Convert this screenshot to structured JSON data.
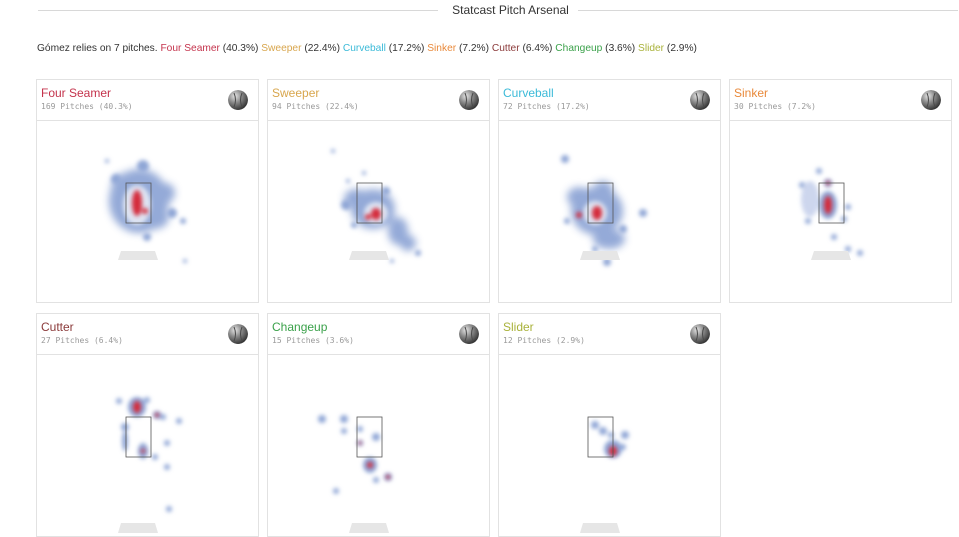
{
  "header": {
    "title": "Statcast Pitch Arsenal"
  },
  "summary": {
    "intro": "Gómez relies on 7 pitches.",
    "items": [
      {
        "name": "Four Seamer",
        "pct": "(40.3%)",
        "color": "#c4334c"
      },
      {
        "name": "Sweeper",
        "pct": "(22.4%)",
        "color": "#d8a64d"
      },
      {
        "name": "Curveball",
        "pct": "(17.2%)",
        "color": "#3bbad8"
      },
      {
        "name": "Sinker",
        "pct": "(7.2%)",
        "color": "#e9893a"
      },
      {
        "name": "Cutter",
        "pct": "(6.4%)",
        "color": "#8b3a3a"
      },
      {
        "name": "Changeup",
        "pct": "(3.6%)",
        "color": "#3aa14a"
      },
      {
        "name": "Slider",
        "pct": "(2.9%)",
        "color": "#a9b23a"
      }
    ]
  },
  "cards": [
    {
      "name": "Four Seamer",
      "count": "169 Pitches (40.3%)",
      "color": "#c4334c",
      "ball_icon": "baseball-grip-icon"
    },
    {
      "name": "Sweeper",
      "count": "94 Pitches (22.4%)",
      "color": "#d8a64d",
      "ball_icon": "baseball-grip-icon"
    },
    {
      "name": "Curveball",
      "count": "72 Pitches (17.2%)",
      "color": "#3bbad8",
      "ball_icon": "baseball-grip-icon"
    },
    {
      "name": "Sinker",
      "count": "30 Pitches (7.2%)",
      "color": "#e9893a",
      "ball_icon": "baseball-grip-icon"
    },
    {
      "name": "Cutter",
      "count": "27 Pitches (6.4%)",
      "color": "#8b3a3a",
      "ball_icon": "baseball-grip-icon"
    },
    {
      "name": "Changeup",
      "count": "15 Pitches (3.6%)",
      "color": "#3aa14a",
      "ball_icon": "baseball-grip-icon"
    },
    {
      "name": "Slider",
      "count": "12 Pitches (2.9%)",
      "color": "#a9b23a",
      "ball_icon": "baseball-grip-icon"
    }
  ],
  "colors": {
    "heat_low": "#8fa6d6",
    "heat_mid": "#c8d2ec",
    "heat_high": "#d42a3a",
    "border": "#e2e2e2"
  }
}
